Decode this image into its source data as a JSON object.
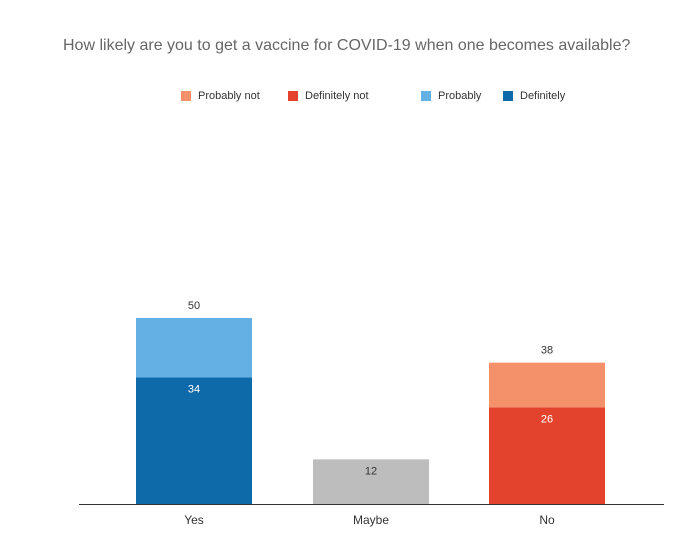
{
  "chart_data": {
    "type": "bar",
    "stacked": true,
    "title": "How likely are you to get a vaccine for COVID-19 when one becomes available?",
    "categories": [
      "Yes",
      "Maybe",
      "No"
    ],
    "legend": [
      {
        "label": "Probably not",
        "color": "#f4916b"
      },
      {
        "label": "Definitely not",
        "color": "#e3432d"
      },
      {
        "label": "Probably",
        "color": "#64b0e4"
      },
      {
        "label": "Definitely",
        "color": "#0e6aa8"
      }
    ],
    "bars": [
      {
        "category": "Yes",
        "total": 50,
        "segments": [
          {
            "name": "Definitely",
            "value": 34,
            "color": "#0e6aa8",
            "label": "34"
          },
          {
            "name": "Probably",
            "value": 16,
            "color": "#64b0e4",
            "label": ""
          }
        ]
      },
      {
        "category": "Maybe",
        "total": 12,
        "segments": [
          {
            "name": "Maybe",
            "value": 12,
            "color": "#bdbdbd",
            "label": "12"
          }
        ]
      },
      {
        "category": "No",
        "total": 38,
        "segments": [
          {
            "name": "Definitely not",
            "value": 26,
            "color": "#e3432d",
            "label": "26"
          },
          {
            "name": "Probably not",
            "value": 12,
            "color": "#f4916b",
            "label": ""
          }
        ]
      }
    ],
    "ylim": [
      0,
      100
    ],
    "grid": false,
    "legend_position": "top-center"
  }
}
